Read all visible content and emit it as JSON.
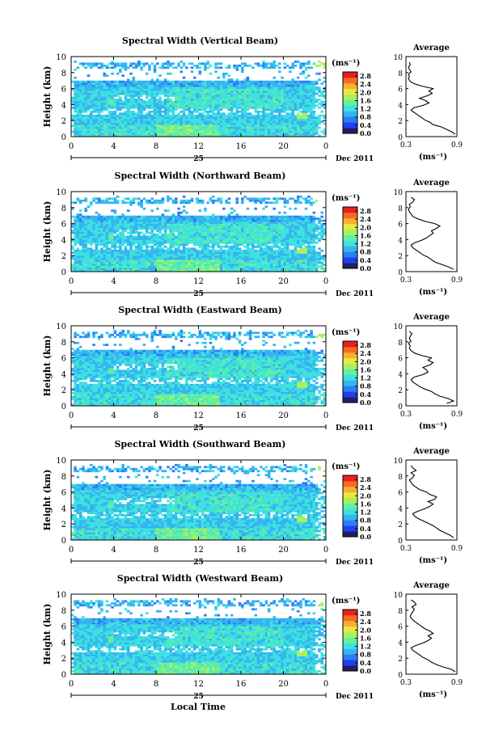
{
  "figure": {
    "footer_xlabel": "Local Time",
    "date_label": "Dec 2011",
    "day_label": "25"
  },
  "colorbar": {
    "unit_label": "(ms⁻¹)",
    "ticks": [
      "2.8",
      "2.4",
      "2.0",
      "1.6",
      "1.2",
      "0.8",
      "0.4",
      "0.0"
    ],
    "range": [
      0.0,
      3.0
    ],
    "colors": [
      "#202060",
      "#1f3ff0",
      "#2a7ef5",
      "#34b4f0",
      "#3ee0e0",
      "#60f0a0",
      "#a8f060",
      "#e8e840",
      "#f8b030",
      "#f86a20",
      "#e82020"
    ]
  },
  "chart_data": [
    {
      "type": "heatmap",
      "title": "Spectral Width (Vertical Beam)",
      "xlabel": "",
      "ylabel": "Height (km)",
      "xticks": [
        "0",
        "4",
        "8",
        "12",
        "16",
        "20",
        "0"
      ],
      "xlim": [
        0,
        24
      ],
      "yticks": [
        "0",
        "2",
        "4",
        "6",
        "8",
        "10"
      ],
      "ylim": [
        0,
        10
      ],
      "avg": {
        "title": "Average",
        "xlabel": "(ms⁻¹)",
        "xticks": [
          "0.3",
          "0.9"
        ],
        "xlim": [
          0.3,
          0.9
        ],
        "yticks": [
          "0",
          "2",
          "4",
          "6",
          "8",
          "10"
        ],
        "heights": [
          0.3,
          0.6,
          0.9,
          1.2,
          1.5,
          1.8,
          2.1,
          2.4,
          2.7,
          3.0,
          3.3,
          3.6,
          3.9,
          4.2,
          4.5,
          4.8,
          5.1,
          5.4,
          5.7,
          6.0,
          6.3,
          6.6,
          6.9,
          7.2,
          7.5,
          7.8,
          8.1,
          8.4,
          8.7,
          9.0,
          9.3
        ],
        "values": [
          0.88,
          0.84,
          0.78,
          0.72,
          0.62,
          0.58,
          0.52,
          0.48,
          0.44,
          0.4,
          0.36,
          0.39,
          0.5,
          0.57,
          0.53,
          0.46,
          0.55,
          0.61,
          0.57,
          0.62,
          0.49,
          0.4,
          0.35,
          0.33,
          0.34,
          0.33,
          0.36,
          0.34,
          0.33,
          0.35,
          0.34
        ]
      }
    },
    {
      "type": "heatmap",
      "title": "Spectral Width (Northward Beam)",
      "xlabel": "",
      "ylabel": "Height (km)",
      "xticks": [
        "0",
        "4",
        "8",
        "12",
        "16",
        "20",
        "0"
      ],
      "xlim": [
        0,
        24
      ],
      "yticks": [
        "0",
        "2",
        "4",
        "6",
        "8",
        "10"
      ],
      "ylim": [
        0,
        10
      ],
      "avg": {
        "title": "Average",
        "xlabel": "(ms⁻¹)",
        "xticks": [
          "0.3",
          "0.9"
        ],
        "xlim": [
          0.3,
          0.9
        ],
        "yticks": [
          "0",
          "2",
          "4",
          "6",
          "8",
          "10"
        ],
        "heights": [
          0.3,
          0.6,
          0.9,
          1.2,
          1.5,
          1.8,
          2.1,
          2.4,
          2.7,
          3.0,
          3.3,
          3.6,
          3.9,
          4.2,
          4.5,
          4.8,
          5.1,
          5.4,
          5.7,
          6.0,
          6.3,
          6.6,
          6.9,
          7.2,
          7.5,
          7.8,
          8.1,
          8.4,
          8.7,
          9.0,
          9.3
        ],
        "values": [
          0.86,
          0.8,
          0.72,
          0.64,
          0.6,
          0.56,
          0.5,
          0.46,
          0.42,
          0.38,
          0.36,
          0.4,
          0.48,
          0.54,
          0.58,
          0.62,
          0.6,
          0.66,
          0.7,
          0.64,
          0.52,
          0.44,
          0.38,
          0.36,
          0.34,
          0.33,
          0.35,
          0.34,
          0.38,
          0.4,
          0.36
        ]
      }
    },
    {
      "type": "heatmap",
      "title": "Spectral Width (Eastward Beam)",
      "xlabel": "",
      "ylabel": "Height (km)",
      "xticks": [
        "0",
        "4",
        "8",
        "12",
        "16",
        "20",
        "0"
      ],
      "xlim": [
        0,
        24
      ],
      "yticks": [
        "0",
        "2",
        "4",
        "6",
        "8",
        "10"
      ],
      "ylim": [
        0,
        10
      ],
      "avg": {
        "title": "Average",
        "xlabel": "(ms⁻¹)",
        "xticks": [
          "0.3",
          "0.9"
        ],
        "xlim": [
          0.3,
          0.9
        ],
        "yticks": [
          "0",
          "2",
          "4",
          "6",
          "8",
          "10"
        ],
        "heights": [
          0.3,
          0.6,
          0.9,
          1.2,
          1.5,
          1.8,
          2.1,
          2.4,
          2.7,
          3.0,
          3.3,
          3.6,
          3.9,
          4.2,
          4.5,
          4.8,
          5.1,
          5.4,
          5.7,
          6.0,
          6.3,
          6.6,
          6.9,
          7.2,
          7.5,
          7.8,
          8.1,
          8.4,
          8.7,
          9.0,
          9.3
        ],
        "values": [
          0.78,
          0.86,
          0.8,
          0.7,
          0.64,
          0.6,
          0.52,
          0.46,
          0.42,
          0.38,
          0.36,
          0.4,
          0.5,
          0.56,
          0.54,
          0.5,
          0.58,
          0.62,
          0.56,
          0.6,
          0.48,
          0.4,
          0.36,
          0.34,
          0.35,
          0.33,
          0.36,
          0.34,
          0.35,
          0.37,
          0.34
        ]
      }
    },
    {
      "type": "heatmap",
      "title": "Spectral Width (Southward Beam)",
      "xlabel": "",
      "ylabel": "Height (km)",
      "xticks": [
        "0",
        "4",
        "8",
        "12",
        "16",
        "20",
        "0"
      ],
      "xlim": [
        0,
        24
      ],
      "yticks": [
        "0",
        "2",
        "4",
        "6",
        "8",
        "10"
      ],
      "ylim": [
        0,
        10
      ],
      "avg": {
        "title": "Average",
        "xlabel": "(ms⁻¹)",
        "xticks": [
          "0.3",
          "0.9"
        ],
        "xlim": [
          0.3,
          0.9
        ],
        "yticks": [
          "0",
          "2",
          "4",
          "6",
          "8",
          "10"
        ],
        "heights": [
          0.3,
          0.6,
          0.9,
          1.2,
          1.5,
          1.8,
          2.1,
          2.4,
          2.7,
          3.0,
          3.3,
          3.6,
          3.9,
          4.2,
          4.5,
          4.8,
          5.1,
          5.4,
          5.7,
          6.0,
          6.3,
          6.6,
          6.9,
          7.2,
          7.5,
          7.8,
          8.1,
          8.4,
          8.7,
          9.0,
          9.3
        ],
        "values": [
          0.86,
          0.82,
          0.76,
          0.7,
          0.66,
          0.62,
          0.56,
          0.5,
          0.44,
          0.4,
          0.38,
          0.44,
          0.52,
          0.58,
          0.62,
          0.56,
          0.64,
          0.66,
          0.58,
          0.54,
          0.46,
          0.42,
          0.38,
          0.36,
          0.34,
          0.38,
          0.4,
          0.36,
          0.42,
          0.38,
          0.36
        ]
      }
    },
    {
      "type": "heatmap",
      "title": "Spectral Width (Westward Beam)",
      "xlabel": "Local Time",
      "ylabel": "Height (km)",
      "xticks": [
        "0",
        "4",
        "8",
        "12",
        "16",
        "20",
        "0"
      ],
      "xlim": [
        0,
        24
      ],
      "yticks": [
        "0",
        "2",
        "4",
        "6",
        "8",
        "10"
      ],
      "ylim": [
        0,
        10
      ],
      "avg": {
        "title": "Average",
        "xlabel": "(ms⁻¹)",
        "xticks": [
          "0.3",
          "0.9"
        ],
        "xlim": [
          0.3,
          0.9
        ],
        "yticks": [
          "0",
          "2",
          "4",
          "6",
          "8",
          "10"
        ],
        "heights": [
          0.3,
          0.6,
          0.9,
          1.2,
          1.5,
          1.8,
          2.1,
          2.4,
          2.7,
          3.0,
          3.3,
          3.6,
          3.9,
          4.2,
          4.5,
          4.8,
          5.1,
          5.4,
          5.7,
          6.0,
          6.3,
          6.6,
          6.9,
          7.2,
          7.5,
          7.8,
          8.1,
          8.4,
          8.7,
          9.0,
          9.3
        ],
        "values": [
          0.88,
          0.84,
          0.74,
          0.66,
          0.6,
          0.56,
          0.5,
          0.46,
          0.42,
          0.38,
          0.36,
          0.42,
          0.5,
          0.56,
          0.6,
          0.56,
          0.62,
          0.58,
          0.52,
          0.48,
          0.44,
          0.4,
          0.37,
          0.35,
          0.36,
          0.38,
          0.4,
          0.37,
          0.42,
          0.4,
          0.36
        ]
      }
    }
  ]
}
